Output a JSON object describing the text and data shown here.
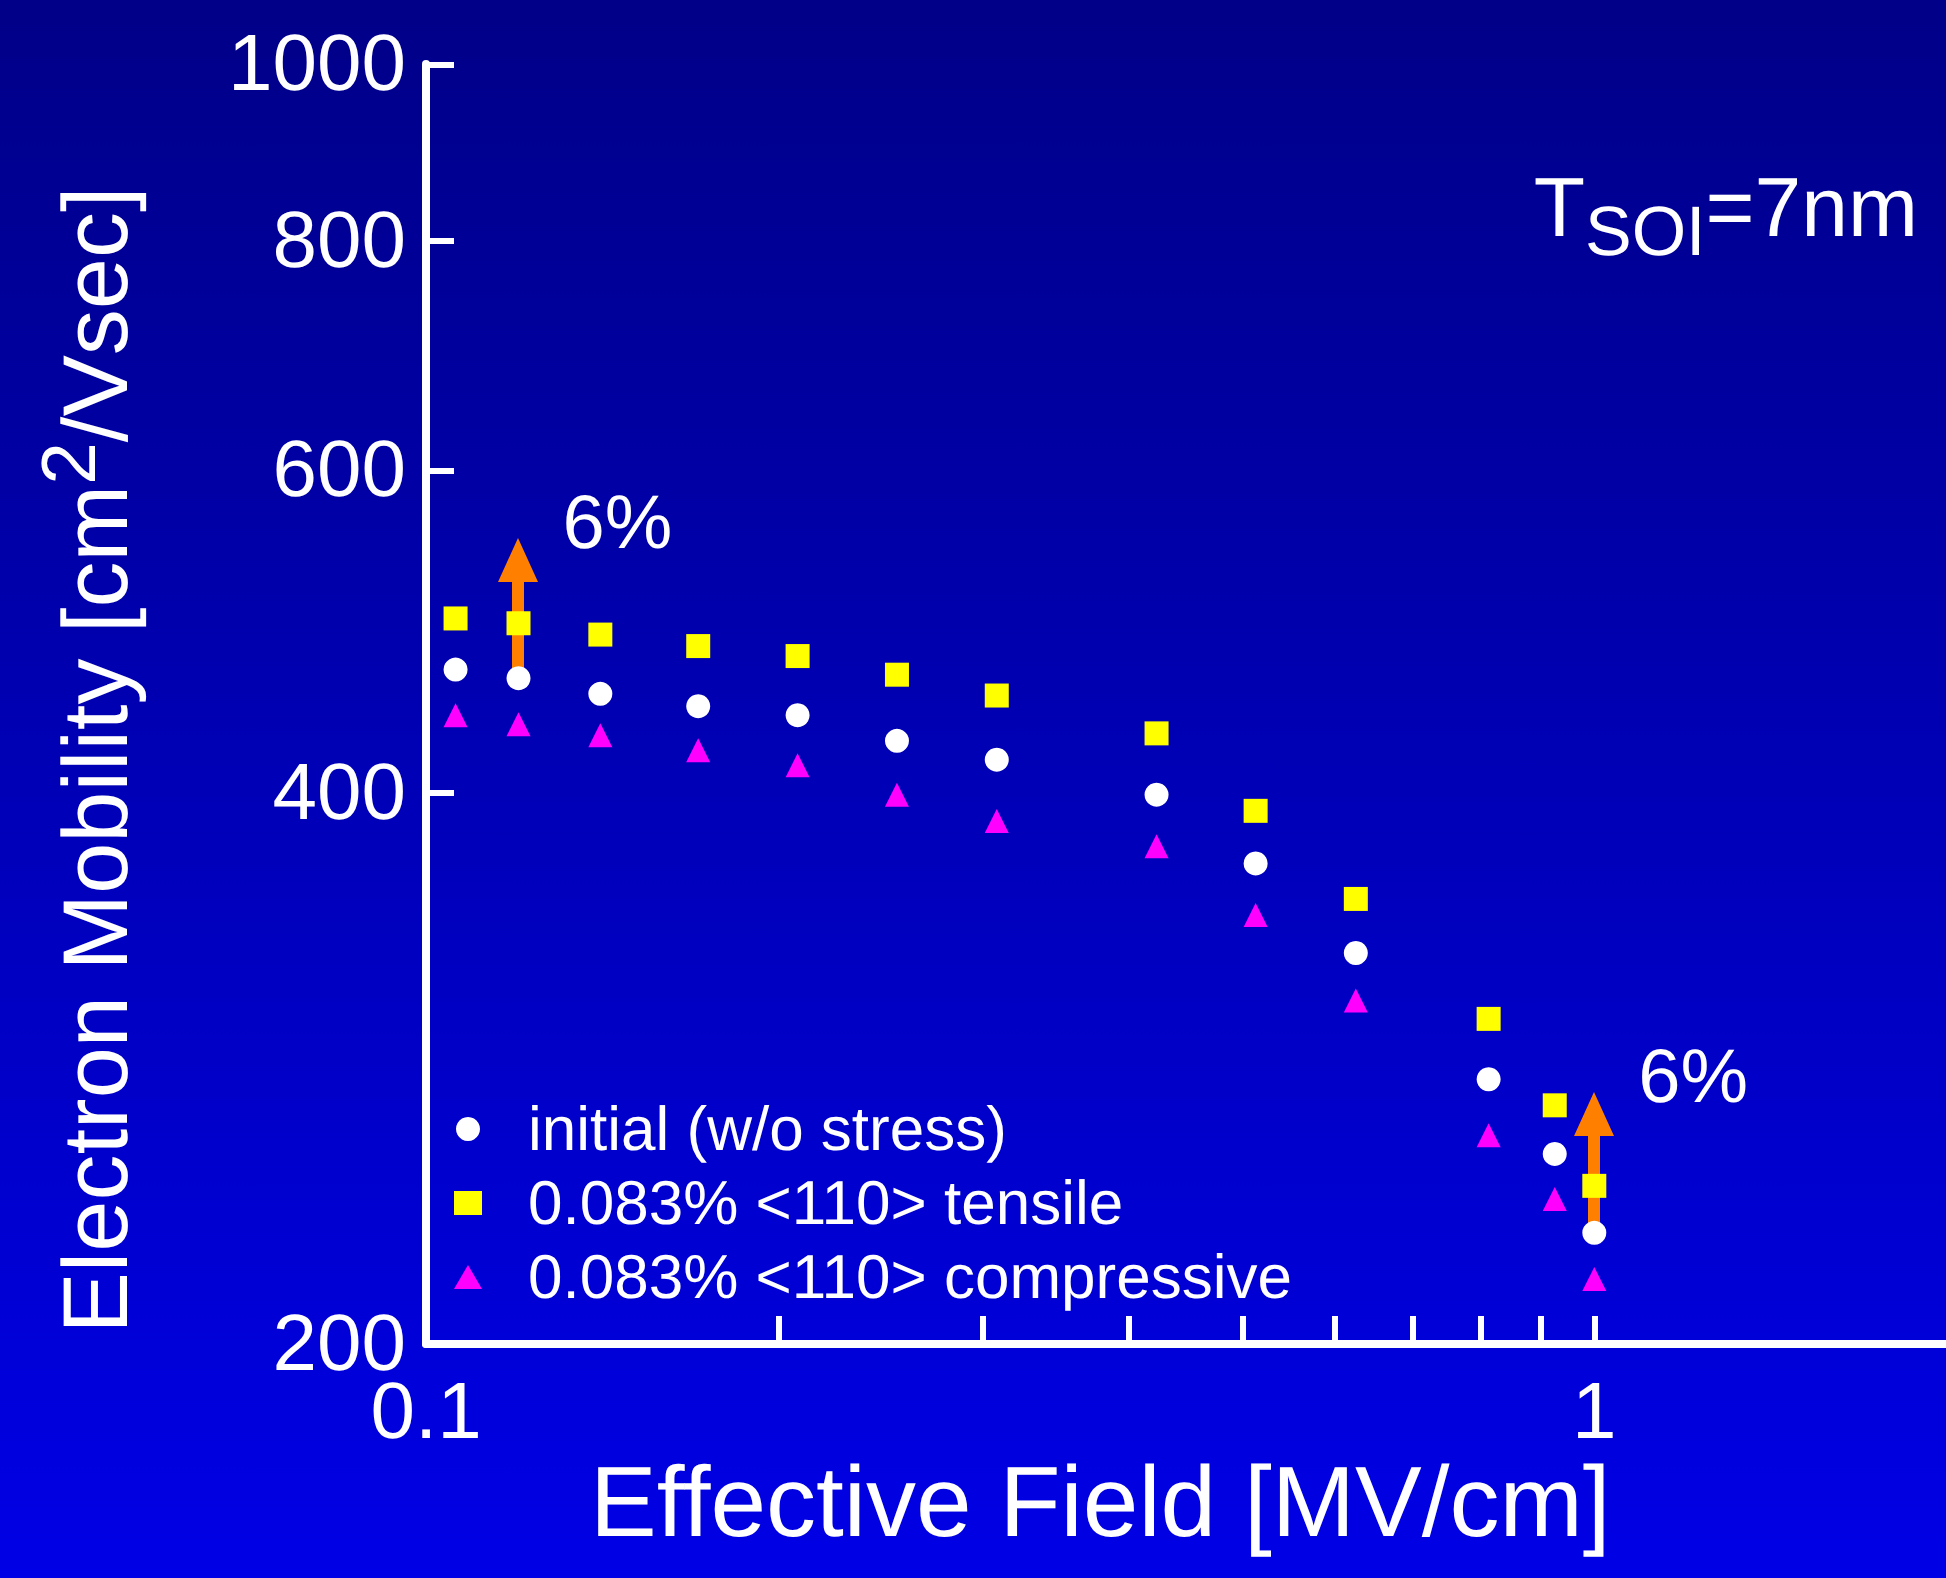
{
  "chart_data": {
    "type": "scatter",
    "xlabel": "Effective Field [MV/cm]",
    "ylabel": "Electron Mobility [cm$^{2}$/Vsec]",
    "x": [
      0.106,
      0.12,
      0.141,
      0.171,
      0.208,
      0.253,
      0.308,
      0.422,
      0.513,
      0.625,
      0.812,
      0.925,
      1.0
    ],
    "series": [
      {
        "name": "initial (w/o stress)",
        "color": "#ffffff",
        "marker": "circle",
        "values": [
          467,
          462,
          453,
          446,
          441,
          427,
          417,
          399,
          366,
          327,
          279,
          254,
          230
        ]
      },
      {
        "name": "0.083% <110> tensile",
        "color": "#ffff00",
        "marker": "square",
        "values": [
          498,
          495,
          488,
          481,
          475,
          464,
          452,
          431,
          391,
          350,
          301,
          270,
          244
        ]
      },
      {
        "name": "0.083% <110> compressive",
        "color": "#ff00ff",
        "marker": "triangle",
        "values": [
          441,
          436,
          430,
          422,
          414,
          399,
          386,
          374,
          343,
          308,
          260,
          240,
          217
        ]
      }
    ],
    "log": "xy",
    "xlim": [
      0.1,
      2
    ],
    "ylim": [
      200,
      1000
    ],
    "xticks": [
      0.1,
      {
        "value": 0.2,
        "label": null
      },
      {
        "value": 0.3,
        "label": null
      },
      {
        "value": 0.4,
        "label": null
      },
      {
        "value": 0.5,
        "label": null
      },
      {
        "value": 0.6,
        "label": null
      },
      {
        "value": 0.7,
        "label": null
      },
      {
        "value": 0.8,
        "label": null
      },
      {
        "value": 0.9,
        "label": null
      },
      1
    ],
    "yticks": [
      200,
      400,
      600,
      800,
      1000
    ],
    "grid": false,
    "legend": "bottom left",
    "annotations": [
      "T$_{SOI}$=7nm",
      {
        "text": "6%",
        "x": 0.12,
        "y": 462
      },
      {
        "text": "6%",
        "x": 1.0,
        "y": 230
      }
    ]
  }
}
